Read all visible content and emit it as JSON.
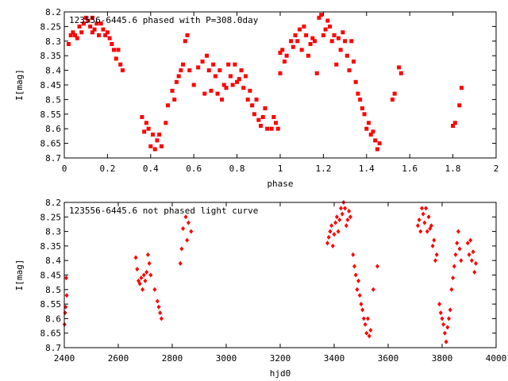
{
  "chart_data": [
    {
      "type": "scatter",
      "title": "123556-6445.6 phased with P=308.0day",
      "xlabel": "phase",
      "ylabel": "I[mag]",
      "xlim": [
        0,
        2
      ],
      "ylim": [
        8.2,
        8.7
      ],
      "y_inverted": true,
      "x_ticks": [
        "0",
        "0.2",
        "0.4",
        "0.6",
        "0.8",
        "1",
        "1.2",
        "1.4",
        "1.6",
        "1.8",
        "2"
      ],
      "y_ticks": [
        "8.2",
        "8.25",
        "8.3",
        "8.35",
        "8.4",
        "8.45",
        "8.5",
        "8.55",
        "8.6",
        "8.65",
        "8.7"
      ],
      "marker": "square",
      "color": "#ff0000",
      "series": [
        {
          "x": [
            0.02,
            0.03,
            0.04,
            0.05,
            0.06,
            0.07,
            0.08,
            0.09,
            0.1,
            0.11,
            0.12,
            0.13,
            0.13,
            0.14,
            0.15,
            0.16,
            0.17,
            0.18,
            0.19,
            0.2,
            0.21,
            0.22,
            0.23,
            0.24,
            0.25,
            0.26,
            0.27,
            0.36,
            0.37,
            0.38,
            0.39,
            0.4,
            0.41,
            0.42,
            0.43,
            0.44,
            0.45,
            0.47,
            0.48,
            0.5,
            0.51,
            0.52,
            0.53,
            0.54,
            0.55,
            0.56,
            0.57,
            0.58,
            0.6,
            0.62,
            0.64,
            0.65,
            0.66,
            0.67,
            0.68,
            0.69,
            0.7,
            0.71,
            0.72,
            0.73,
            0.74,
            0.75,
            0.76,
            0.77,
            0.78,
            0.79,
            0.8,
            0.81,
            0.82,
            0.83,
            0.84,
            0.85,
            0.86,
            0.87,
            0.88,
            0.89,
            0.9,
            0.91,
            0.92,
            0.93,
            0.94,
            0.96,
            0.97,
            0.98,
            0.99,
            1.0,
            1.0,
            1.01,
            1.02,
            1.03,
            1.05,
            1.06,
            1.07,
            1.08,
            1.09,
            1.1,
            1.11,
            1.12,
            1.13,
            1.14,
            1.15,
            1.16,
            1.17,
            1.18,
            1.19,
            1.2,
            1.21,
            1.22,
            1.23,
            1.24,
            1.25,
            1.26,
            1.27,
            1.28,
            1.29,
            1.3,
            1.31,
            1.32,
            1.33,
            1.34,
            1.35,
            1.36,
            1.37,
            1.38,
            1.39,
            1.4,
            1.41,
            1.42,
            1.43,
            1.44,
            1.45,
            1.46,
            1.52,
            1.53,
            1.55,
            1.56,
            1.8,
            1.81,
            1.83,
            1.84
          ],
          "y": [
            8.31,
            8.28,
            8.27,
            8.28,
            8.29,
            8.25,
            8.27,
            8.24,
            8.22,
            8.23,
            8.25,
            8.27,
            8.22,
            8.26,
            8.24,
            8.28,
            8.24,
            8.26,
            8.28,
            8.27,
            8.29,
            8.31,
            8.33,
            8.36,
            8.33,
            8.38,
            8.4,
            8.56,
            8.61,
            8.58,
            8.6,
            8.66,
            8.62,
            8.67,
            8.64,
            8.62,
            8.66,
            8.58,
            8.52,
            8.47,
            8.5,
            8.44,
            8.42,
            8.4,
            8.38,
            8.3,
            8.28,
            8.4,
            8.45,
            8.39,
            8.37,
            8.48,
            8.35,
            8.4,
            8.47,
            8.38,
            8.42,
            8.48,
            8.4,
            8.5,
            8.45,
            8.46,
            8.38,
            8.42,
            8.45,
            8.38,
            8.44,
            8.43,
            8.4,
            8.46,
            8.42,
            8.5,
            8.47,
            8.52,
            8.55,
            8.5,
            8.57,
            8.59,
            8.56,
            8.53,
            8.6,
            8.6,
            8.56,
            8.58,
            8.6,
            8.34,
            8.41,
            8.33,
            8.37,
            8.35,
            8.3,
            8.32,
            8.28,
            8.3,
            8.26,
            8.33,
            8.25,
            8.28,
            8.35,
            8.31,
            8.29,
            8.3,
            8.41,
            8.22,
            8.21,
            8.28,
            8.26,
            8.23,
            8.25,
            8.3,
            8.28,
            8.38,
            8.29,
            8.33,
            8.27,
            8.3,
            8.35,
            8.4,
            8.3,
            8.37,
            8.44,
            8.48,
            8.5,
            8.53,
            8.55,
            8.6,
            8.58,
            8.62,
            8.61,
            8.64,
            8.67,
            8.65,
            8.5,
            8.48,
            8.39,
            8.41,
            8.59,
            8.58,
            8.52,
            8.46
          ]
        }
      ]
    },
    {
      "type": "scatter",
      "title": "123556-6445.6 not phased light curve",
      "xlabel": "hjd0",
      "ylabel": "I[mag]",
      "xlim": [
        2400,
        4000
      ],
      "ylim": [
        8.2,
        8.7
      ],
      "y_inverted": true,
      "x_ticks": [
        "2400",
        "2600",
        "2800",
        "3000",
        "3200",
        "3400",
        "3600",
        "3800",
        "4000"
      ],
      "y_ticks": [
        "8.2",
        "8.25",
        "8.3",
        "8.35",
        "8.4",
        "8.45",
        "8.5",
        "8.55",
        "8.6",
        "8.65",
        "8.7"
      ],
      "marker": "diamond",
      "color": "#ff0000",
      "series": [
        {
          "x": [
            2401,
            2403,
            2405,
            2407,
            2409,
            2665,
            2670,
            2675,
            2680,
            2685,
            2690,
            2695,
            2700,
            2705,
            2710,
            2715,
            2720,
            2735,
            2745,
            2750,
            2755,
            2760,
            2830,
            2835,
            2840,
            2850,
            2855,
            2860,
            2870,
            3375,
            3380,
            3385,
            3390,
            3395,
            3400,
            3405,
            3410,
            3415,
            3420,
            3425,
            3430,
            3435,
            3440,
            3445,
            3450,
            3455,
            3460,
            3470,
            3475,
            3480,
            3485,
            3490,
            3495,
            3500,
            3505,
            3510,
            3515,
            3520,
            3525,
            3530,
            3535,
            3545,
            3560,
            3710,
            3715,
            3720,
            3725,
            3730,
            3735,
            3740,
            3745,
            3750,
            3755,
            3760,
            3765,
            3770,
            3775,
            3780,
            3790,
            3795,
            3800,
            3805,
            3810,
            3815,
            3820,
            3825,
            3830,
            3835,
            3840,
            3845,
            3850,
            3855,
            3860,
            3865,
            3870,
            3895,
            3900,
            3905,
            3910,
            3915,
            3920,
            3925
          ],
          "y": [
            8.62,
            8.58,
            8.56,
            8.46,
            8.52,
            8.39,
            8.43,
            8.47,
            8.48,
            8.46,
            8.5,
            8.45,
            8.47,
            8.44,
            8.38,
            8.41,
            8.45,
            8.5,
            8.54,
            8.56,
            8.58,
            8.6,
            8.41,
            8.36,
            8.29,
            8.25,
            8.33,
            8.27,
            8.3,
            8.34,
            8.32,
            8.3,
            8.28,
            8.35,
            8.31,
            8.27,
            8.25,
            8.3,
            8.26,
            8.22,
            8.24,
            8.2,
            8.22,
            8.28,
            8.26,
            8.23,
            8.25,
            8.38,
            8.42,
            8.45,
            8.5,
            8.47,
            8.52,
            8.55,
            8.57,
            8.6,
            8.62,
            8.65,
            8.6,
            8.66,
            8.64,
            8.5,
            8.42,
            8.28,
            8.26,
            8.3,
            8.22,
            8.24,
            8.27,
            8.22,
            8.3,
            8.25,
            8.29,
            8.28,
            8.35,
            8.33,
            8.4,
            8.38,
            8.55,
            8.58,
            8.6,
            8.62,
            8.65,
            8.68,
            8.63,
            8.6,
            8.57,
            8.5,
            8.46,
            8.42,
            8.38,
            8.34,
            8.3,
            8.36,
            8.4,
            8.34,
            8.38,
            8.33,
            8.4,
            8.37,
            8.44,
            8.41
          ]
        }
      ]
    }
  ]
}
